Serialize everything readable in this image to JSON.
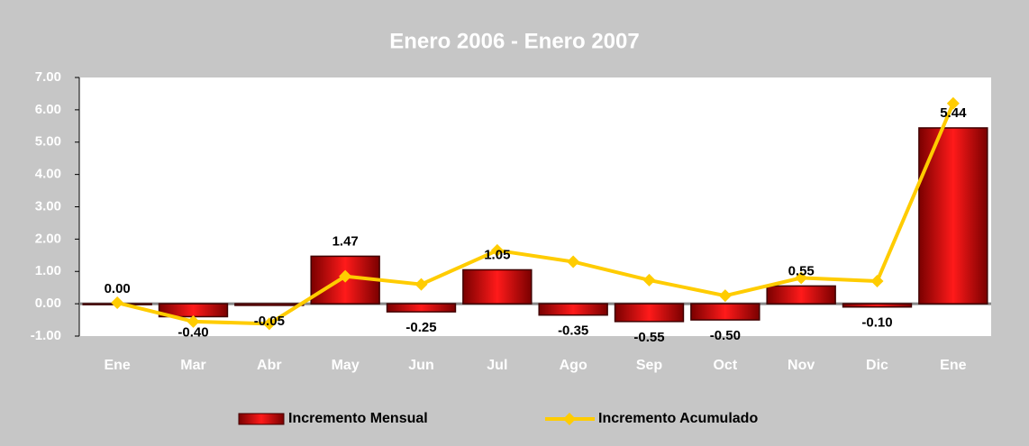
{
  "chart_data": {
    "type": "bar_line",
    "title": "Enero 2006 - Enero 2007",
    "categories": [
      "Ene",
      "Mar",
      "Abr",
      "May",
      "Jun",
      "Jul",
      "Ago",
      "Sep",
      "Oct",
      "Nov",
      "Dic",
      "Ene"
    ],
    "series": [
      {
        "name": "Incremento Mensual",
        "type": "bar",
        "color": "#e00000",
        "values": [
          0.0,
          -0.4,
          -0.05,
          1.47,
          -0.25,
          1.05,
          -0.35,
          -0.55,
          -0.5,
          0.55,
          -0.1,
          5.44
        ],
        "value_labels": [
          "0.00",
          "-0.40",
          "-0.05",
          "1.47",
          "-0.25",
          "1.05",
          "-0.35",
          "-0.55",
          "-0.50",
          "0.55",
          "-0.10",
          "5.44"
        ]
      },
      {
        "name": "Incremento Acumulado",
        "type": "line",
        "color": "#ffcc00",
        "values": [
          0.03,
          -0.55,
          -0.62,
          0.85,
          0.6,
          1.65,
          1.3,
          0.73,
          0.25,
          0.8,
          0.7,
          6.2
        ]
      }
    ],
    "ylim": [
      -1,
      7
    ],
    "yticks": [
      {
        "value": -1,
        "label": "-1.00"
      },
      {
        "value": 0,
        "label": "0.00"
      },
      {
        "value": 1,
        "label": "1.00"
      },
      {
        "value": 2,
        "label": "2.00"
      },
      {
        "value": 3,
        "label": "3.00"
      },
      {
        "value": 4,
        "label": "4.00"
      },
      {
        "value": 5,
        "label": "5.00"
      },
      {
        "value": 6,
        "label": "6.00"
      },
      {
        "value": 7,
        "label": "7.00"
      }
    ],
    "legend": "bottom"
  }
}
